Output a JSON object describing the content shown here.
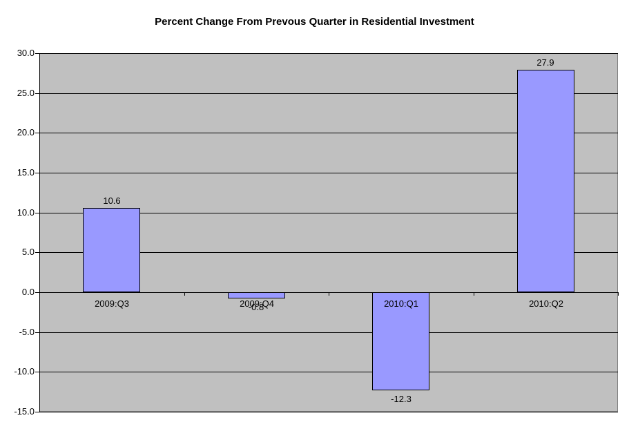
{
  "chart_data": {
    "type": "bar",
    "title": "Percent Change From Prevous Quarter in Residential Investment",
    "categories": [
      "2009:Q3",
      "2009:Q4",
      "2010:Q1",
      "2010:Q2"
    ],
    "values": [
      10.6,
      -0.8,
      -12.3,
      27.9
    ],
    "data_labels": [
      "10.6",
      "-0.8",
      "-12.3",
      "27.9"
    ],
    "xlabel": "",
    "ylabel": "",
    "ylim": [
      -15,
      30
    ],
    "ytick_step": 5,
    "ytick_labels": [
      "30.0",
      "25.0",
      "20.0",
      "15.0",
      "10.0",
      "5.0",
      "0.0",
      "-5.0",
      "-10.0",
      "-15.0"
    ],
    "grid": true,
    "legend": "none",
    "colors": {
      "bar_fill": "#9999FF",
      "bar_border": "#000000",
      "plot_bg": "#C0C0C0",
      "plot_border": "#808080",
      "gridline": "#000000",
      "axis": "#000000",
      "text": "#000000",
      "page_bg": "#FFFFFF"
    }
  }
}
